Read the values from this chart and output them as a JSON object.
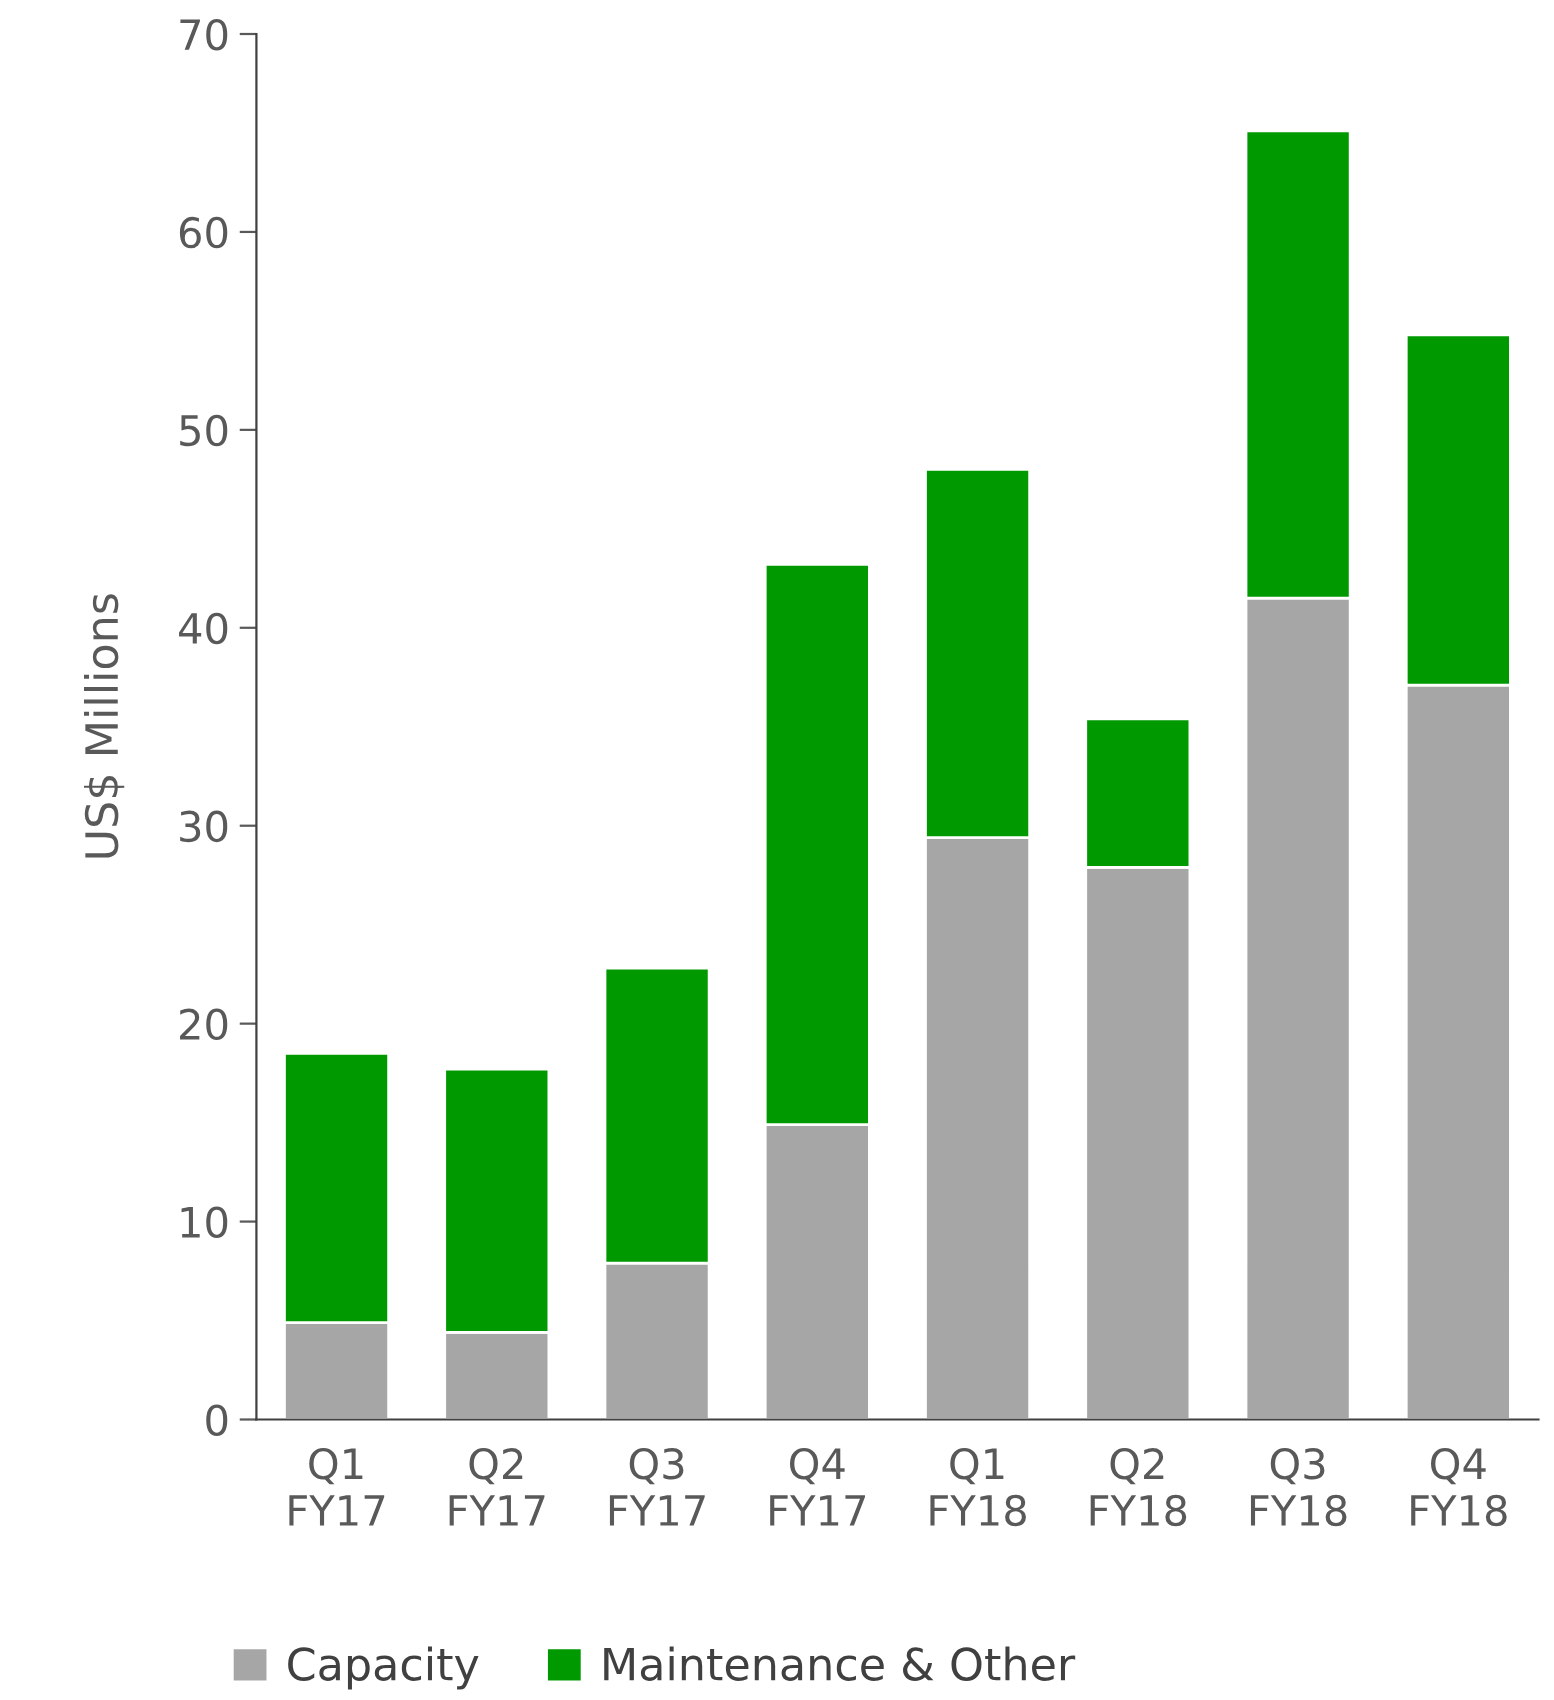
{
  "chart_data": {
    "type": "bar",
    "stacked": true,
    "ylabel": "US$ Millions",
    "categories": [
      "Q1\nFY17",
      "Q2\nFY17",
      "Q3\nFY17",
      "Q4\nFY17",
      "Q1\nFY18",
      "Q2\nFY18",
      "Q3\nFY18",
      "Q4\nFY18"
    ],
    "series": [
      {
        "name": "Capacity",
        "color": "#a6a6a6",
        "values": [
          4.9,
          4.4,
          7.9,
          14.9,
          29.4,
          27.9,
          41.5,
          37.1
        ]
      },
      {
        "name": "Maintenance & Other",
        "color": "#009900",
        "values": [
          13.6,
          13.3,
          14.9,
          28.3,
          18.6,
          7.5,
          23.6,
          17.7
        ]
      }
    ],
    "ylim": [
      0,
      70
    ],
    "yticks": [
      0,
      10,
      20,
      30,
      40,
      50,
      60,
      70
    ],
    "grid": false,
    "legend": "bottom"
  }
}
